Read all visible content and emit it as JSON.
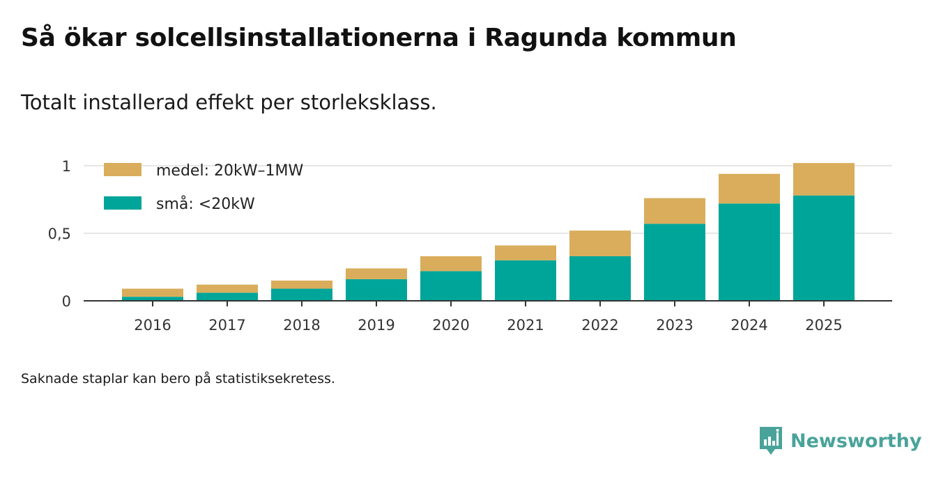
{
  "title": "Så ökar solcellsinstallationerna i Ragunda kommun",
  "subtitle": "Totalt installerad effekt per storleksklass.",
  "note": "Saknade staplar kan bero på statistiksekretess.",
  "brand": {
    "name": "Newsworthy",
    "icon": "newsworthy-logo-icon",
    "color": "#4aa39a"
  },
  "chart_data": {
    "type": "bar",
    "stacked": true,
    "categories": [
      "2016",
      "2017",
      "2018",
      "2019",
      "2020",
      "2021",
      "2022",
      "2023",
      "2024",
      "2025"
    ],
    "series": [
      {
        "name": "små: <20kW",
        "color": "#00a59a",
        "values": [
          0.03,
          0.06,
          0.09,
          0.16,
          0.22,
          0.3,
          0.33,
          0.57,
          0.72,
          0.78
        ]
      },
      {
        "name": "medel: 20kW–1MW",
        "color": "#d9ad5b",
        "values": [
          0.06,
          0.06,
          0.06,
          0.08,
          0.11,
          0.11,
          0.19,
          0.19,
          0.22,
          0.24
        ]
      }
    ],
    "legend_order": [
      "medel: 20kW–1MW",
      "små: <20kW"
    ],
    "legend_position": "top-left",
    "yticks": [
      0,
      0.5,
      1
    ],
    "ytick_labels": [
      "0",
      "0,5",
      "1"
    ],
    "ylim": [
      0,
      1.02
    ],
    "grid": true,
    "xlabel": "",
    "ylabel": ""
  }
}
